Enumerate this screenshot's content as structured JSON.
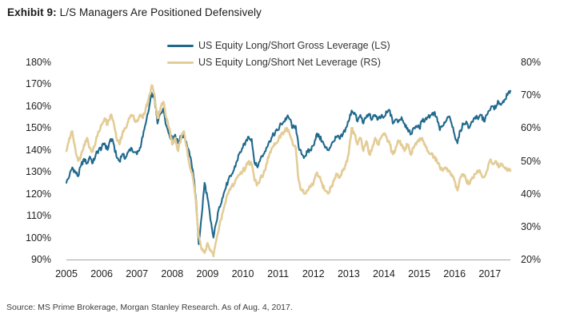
{
  "header": {
    "exhibit_label": "Exhibit 9:",
    "title": "L/S Managers Are Positioned Defensively"
  },
  "footer": {
    "source": "Source: MS Prime Brokerage, Morgan Stanley Research. As of Aug. 4, 2017."
  },
  "colors": {
    "gross_line": "#20698C",
    "net_line": "#E3CC96",
    "axis_line": "#A6A6A6",
    "title_text": "#1A1A1A",
    "tick_text": "#1F1F1F",
    "legend_text": "#333333",
    "source_text": "#3C3C3C",
    "background": "#FFFFFF"
  },
  "chart_data": {
    "type": "line",
    "title": "Exhibit 9: L/S Managers Are Positioned Defensively",
    "x_start": "2005-01",
    "x_end": "2017-08",
    "x_ticks": [
      2005,
      2006,
      2007,
      2008,
      2009,
      2010,
      2011,
      2012,
      2013,
      2014,
      2015,
      2016,
      2017
    ],
    "grid": false,
    "legend_position": "top-center",
    "left_axis": {
      "min": 90,
      "max": 180,
      "tick_step": 10,
      "format": "percent",
      "ticks": [
        180,
        170,
        160,
        150,
        140,
        130,
        120,
        110,
        100,
        90
      ]
    },
    "right_axis": {
      "min": 20,
      "max": 80,
      "tick_step": 10,
      "format": "percent",
      "ticks": [
        80,
        70,
        60,
        50,
        40,
        30,
        20
      ]
    },
    "series": [
      {
        "name": "US Equity Long/Short Gross Leverage (LS)",
        "axis": "left",
        "color": "#20698C",
        "frequency": "monthly",
        "values": [
          125,
          128,
          132,
          130,
          128,
          133,
          136,
          134,
          137,
          134,
          138,
          140,
          141,
          143,
          140,
          145,
          143,
          137,
          135,
          138,
          136,
          139,
          141,
          139,
          138,
          141,
          146,
          152,
          158,
          166,
          163,
          152,
          157,
          159,
          151,
          147,
          145,
          147,
          143,
          146,
          147,
          142,
          137,
          131,
          119,
          97,
          110,
          125,
          118,
          108,
          100,
          107,
          114,
          118,
          122,
          126,
          128,
          131,
          135,
          139,
          141,
          144,
          146,
          145,
          134,
          132,
          136,
          138,
          141,
          144,
          146,
          148,
          149,
          152,
          153,
          155,
          154,
          150,
          151,
          141,
          138,
          137,
          139,
          140,
          142,
          147,
          146,
          144,
          141,
          140,
          142,
          144,
          146,
          145,
          147,
          150,
          153,
          158,
          157,
          153,
          156,
          152,
          155,
          156,
          154,
          156,
          154,
          155,
          155,
          157,
          158,
          152,
          154,
          153,
          155,
          152,
          150,
          147,
          150,
          151,
          150,
          153,
          154,
          155,
          156,
          157,
          155,
          149,
          151,
          153,
          155,
          152,
          147,
          143,
          149,
          152,
          153,
          150,
          153,
          155,
          154,
          156,
          153,
          156,
          158,
          160,
          159,
          162,
          161,
          163,
          165,
          167
        ]
      },
      {
        "name": "US Equity Long/Short Net Leverage (RS)",
        "axis": "right",
        "color": "#E3CC96",
        "frequency": "monthly",
        "values": [
          53,
          57,
          59,
          54,
          50,
          52,
          55,
          57,
          54,
          53,
          56,
          59,
          61,
          63,
          61,
          64,
          62,
          57,
          55,
          58,
          60,
          62,
          64,
          63,
          62,
          64,
          63,
          66,
          69,
          73,
          70,
          63,
          66,
          68,
          63,
          60,
          55,
          57,
          53,
          57,
          59,
          54,
          48,
          45,
          38,
          27,
          23,
          22,
          25,
          23,
          21,
          26,
          30,
          34,
          37,
          40,
          42,
          43,
          45,
          46,
          47,
          48,
          50,
          49,
          44,
          43,
          45,
          46,
          49,
          52,
          54,
          55,
          56,
          58,
          59,
          60,
          58,
          55,
          54,
          44,
          41,
          40,
          41,
          42,
          43,
          46,
          45,
          43,
          41,
          40,
          42,
          44,
          46,
          45,
          47,
          49,
          52,
          60,
          58,
          55,
          57,
          53,
          56,
          52,
          54,
          57,
          55,
          57,
          58,
          57,
          55,
          52,
          54,
          56,
          55,
          53,
          55,
          52,
          54,
          55,
          56,
          57,
          55,
          53,
          52,
          51,
          50,
          48,
          47,
          48,
          47,
          46,
          44,
          41,
          45,
          46,
          44,
          43,
          45,
          46,
          47,
          46,
          45,
          47,
          50,
          49,
          50,
          48,
          49,
          48,
          47,
          47
        ]
      }
    ]
  }
}
